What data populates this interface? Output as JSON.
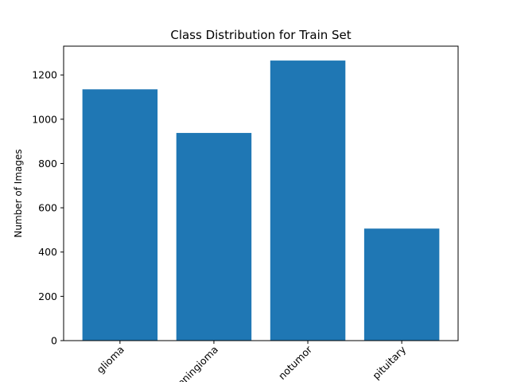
{
  "chart_data": {
    "type": "bar",
    "title": "Class Distribution for Train Set",
    "xlabel": "",
    "ylabel": "Number of Images",
    "categories": [
      "glioma",
      "meningioma",
      "notumor",
      "pituitary"
    ],
    "values": [
      1135,
      938,
      1265,
      506
    ],
    "ylim": [
      0,
      1330
    ],
    "yticks": [
      0,
      200,
      400,
      600,
      800,
      1000,
      1200
    ],
    "xtick_rotation_deg": 45,
    "grid": false,
    "legend": "none",
    "colors": {
      "bar": "#1f77b4",
      "axis": "#000000",
      "background": "#ffffff"
    }
  }
}
